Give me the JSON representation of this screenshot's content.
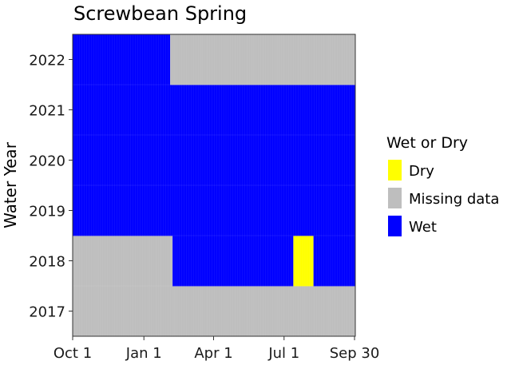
{
  "chart_data": {
    "type": "heatmap",
    "title": "Screwbean Spring",
    "xlabel": "",
    "ylabel": "Water Year",
    "x_ticks": [
      "Oct 1",
      "Jan 1",
      "Apr 1",
      "Jul 1",
      "Sep 30"
    ],
    "x_tick_days": [
      0,
      92,
      182,
      273,
      364
    ],
    "x_range_days": [
      0,
      365
    ],
    "y_categories": [
      2017,
      2018,
      2019,
      2020,
      2021,
      2022
    ],
    "legend": {
      "title": "Wet or Dry",
      "position": "right",
      "entries": [
        {
          "label": "Dry",
          "color": "#ffff00"
        },
        {
          "label": "Missing data",
          "color": "#bebebe"
        },
        {
          "label": "Wet",
          "color": "#0000ff"
        }
      ]
    },
    "grid": true,
    "segments": [
      {
        "year": 2017,
        "start_day": 0,
        "end_day": 365,
        "status": "Missing data"
      },
      {
        "year": 2018,
        "start_day": 0,
        "end_day": 129,
        "status": "Missing data"
      },
      {
        "year": 2018,
        "start_day": 129,
        "end_day": 285,
        "status": "Wet"
      },
      {
        "year": 2018,
        "start_day": 285,
        "end_day": 311,
        "status": "Dry"
      },
      {
        "year": 2018,
        "start_day": 311,
        "end_day": 365,
        "status": "Wet"
      },
      {
        "year": 2019,
        "start_day": 0,
        "end_day": 365,
        "status": "Wet"
      },
      {
        "year": 2020,
        "start_day": 0,
        "end_day": 365,
        "status": "Wet"
      },
      {
        "year": 2021,
        "start_day": 0,
        "end_day": 365,
        "status": "Wet"
      },
      {
        "year": 2022,
        "start_day": 0,
        "end_day": 126,
        "status": "Wet"
      },
      {
        "year": 2022,
        "start_day": 126,
        "end_day": 365,
        "status": "Missing data"
      }
    ]
  }
}
